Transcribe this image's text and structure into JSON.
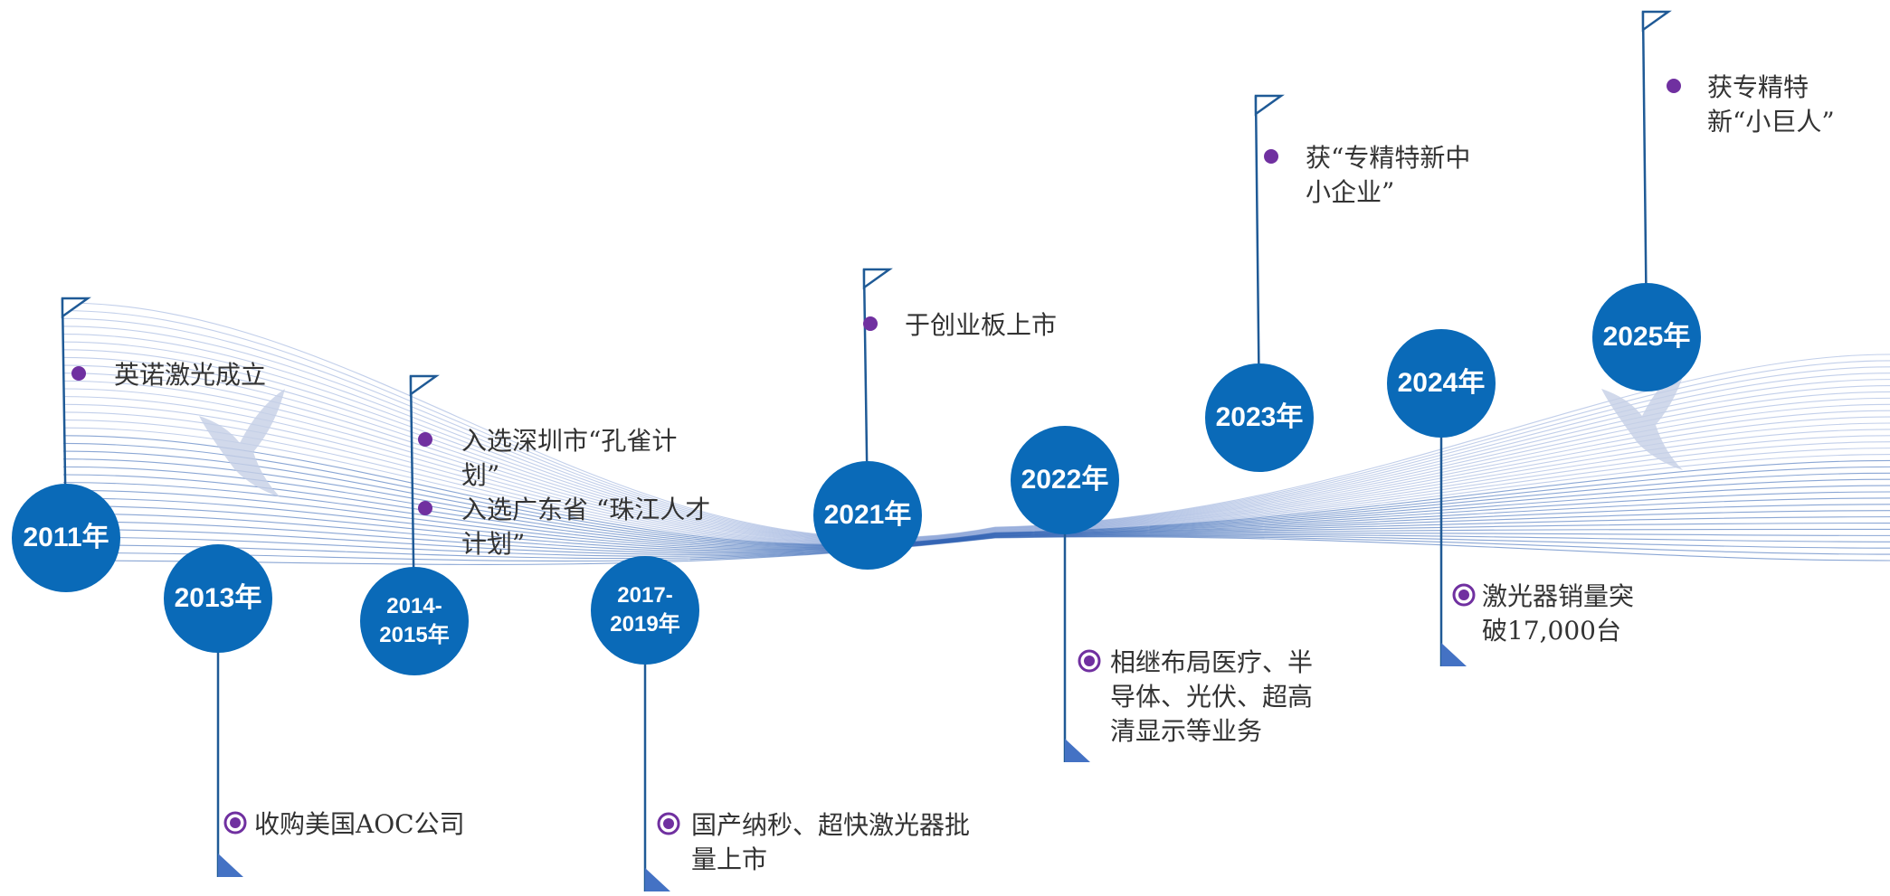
{
  "nodes": [
    {
      "year": "2011年",
      "events": [
        "英诺激光成立"
      ]
    },
    {
      "year": "2013年",
      "events": [
        "收购美国AOC公司"
      ]
    },
    {
      "year": "2014-2015年",
      "events": [
        "入选深圳市“孔雀计划”",
        "入选广东省 “珠江人才计划”"
      ]
    },
    {
      "year": "2017-2019年",
      "events": [
        "国产纳秒、超快激光器批量上市"
      ]
    },
    {
      "year": "2021年",
      "events": [
        "于创业板上市"
      ]
    },
    {
      "year": "2022年",
      "events": [
        "相继布局医疗、半导体、光伏、超高清显示等业务"
      ]
    },
    {
      "year": "2023年",
      "events": [
        "获“专精特新中小企业”"
      ]
    },
    {
      "year": "2024年",
      "events": [
        "激光器销量突破17,000台"
      ]
    },
    {
      "year": "2025年",
      "events": [
        "获专精特新“小巨人”"
      ]
    }
  ]
}
